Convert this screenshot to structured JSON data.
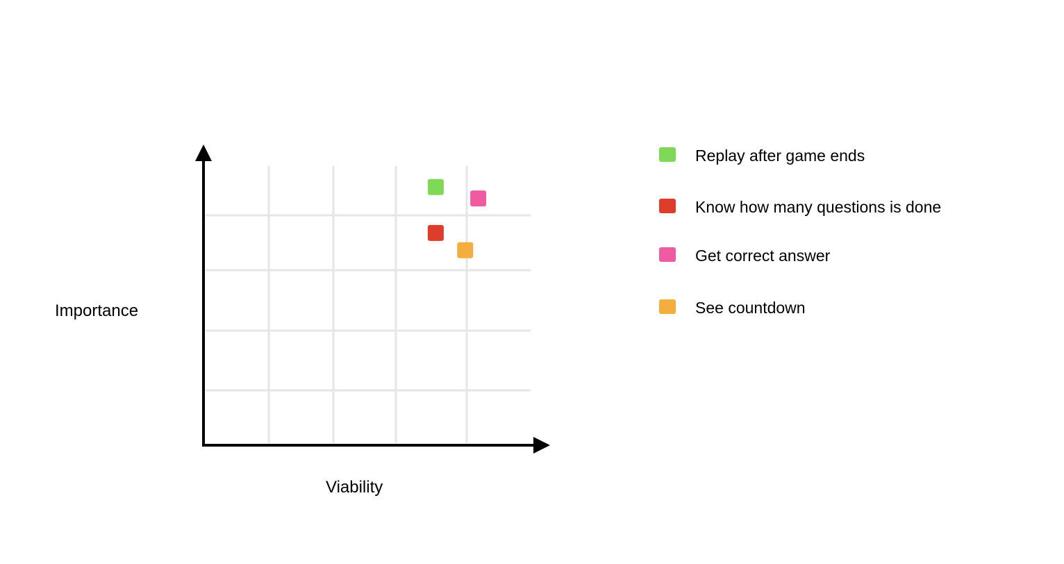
{
  "chart_data": {
    "type": "scatter",
    "title": "",
    "xlabel": "Viability",
    "ylabel": "Importance",
    "xlim": [
      0,
      5
    ],
    "ylim": [
      0,
      5
    ],
    "grid": true,
    "legend_placement": "right",
    "series": [
      {
        "name": "Replay after game ends",
        "color": "#7ed957",
        "x": [
          3.55
        ],
        "y": [
          4.5
        ]
      },
      {
        "name": "Know how many questions is done",
        "color": "#dd3d2a",
        "x": [
          3.55
        ],
        "y": [
          3.7
        ]
      },
      {
        "name": "Get correct answer",
        "color": "#ef5aa0",
        "x": [
          4.2
        ],
        "y": [
          4.3
        ]
      },
      {
        "name": "See countdown",
        "color": "#f4ae3d",
        "x": [
          4.0
        ],
        "y": [
          3.4
        ]
      }
    ]
  }
}
